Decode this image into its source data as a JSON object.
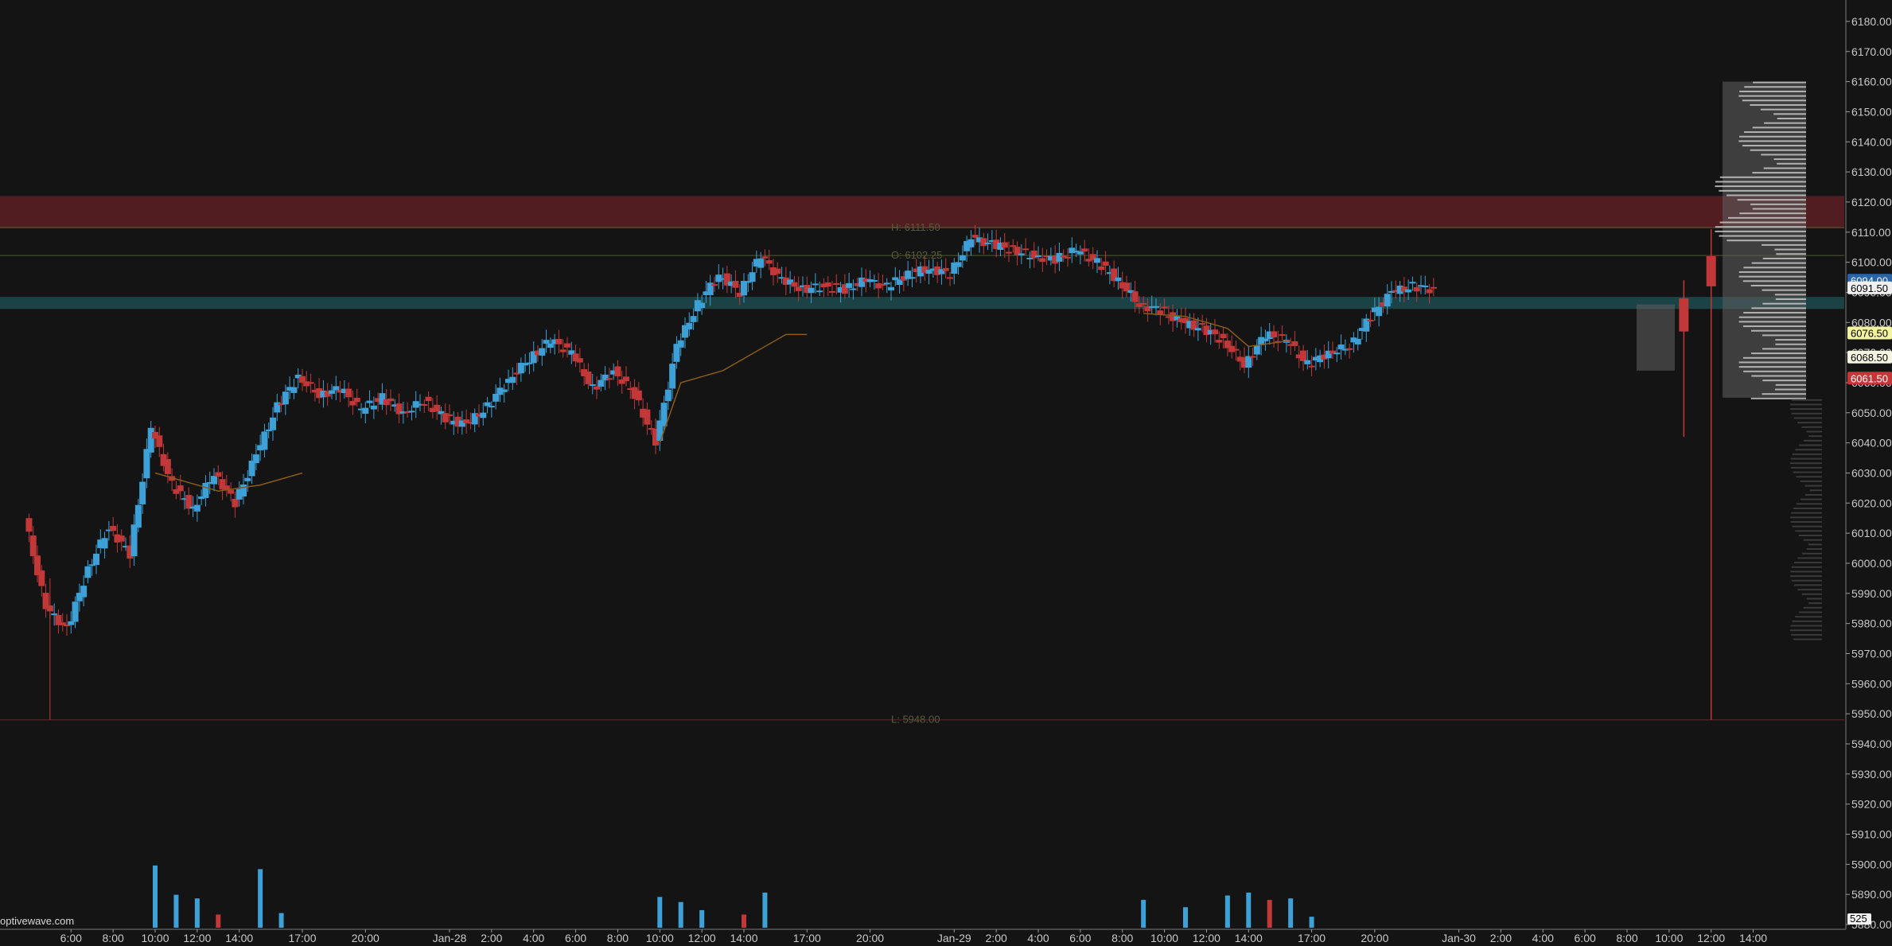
{
  "watermark": "optivewave.com",
  "chart_data": {
    "type": "candlestick",
    "y_axis": {
      "min": 5880,
      "max": 6185,
      "step": 10,
      "position": "right",
      "ticks": [
        6180,
        6170,
        6160,
        6150,
        6140,
        6130,
        6120,
        6110,
        6100,
        6090,
        6080,
        6070,
        6060,
        6050,
        6040,
        6030,
        6020,
        6010,
        6000,
        5990,
        5980,
        5970,
        5960,
        5950,
        5940,
        5930,
        5920,
        5910,
        5900,
        5890,
        5880
      ]
    },
    "x_axis": {
      "labels": [
        {
          "t": 3,
          "label": "6:00"
        },
        {
          "t": 5,
          "label": "8:00"
        },
        {
          "t": 7,
          "label": "10:00"
        },
        {
          "t": 9,
          "label": "12:00"
        },
        {
          "t": 11,
          "label": "14:00"
        },
        {
          "t": 14,
          "label": "17:00"
        },
        {
          "t": 17,
          "label": "20:00"
        },
        {
          "t": 21,
          "label": "Jan-28"
        },
        {
          "t": 23,
          "label": "2:00"
        },
        {
          "t": 25,
          "label": "4:00"
        },
        {
          "t": 27,
          "label": "6:00"
        },
        {
          "t": 29,
          "label": "8:00"
        },
        {
          "t": 31,
          "label": "10:00"
        },
        {
          "t": 33,
          "label": "12:00"
        },
        {
          "t": 35,
          "label": "14:00"
        },
        {
          "t": 38,
          "label": "17:00"
        },
        {
          "t": 41,
          "label": "20:00"
        },
        {
          "t": 45,
          "label": "Jan-29"
        },
        {
          "t": 47,
          "label": "2:00"
        },
        {
          "t": 49,
          "label": "4:00"
        },
        {
          "t": 51,
          "label": "6:00"
        },
        {
          "t": 53,
          "label": "8:00"
        },
        {
          "t": 55,
          "label": "10:00"
        },
        {
          "t": 57,
          "label": "12:00"
        },
        {
          "t": 59,
          "label": "14:00"
        },
        {
          "t": 62,
          "label": "17:00"
        },
        {
          "t": 65,
          "label": "20:00"
        },
        {
          "t": 69,
          "label": "Jan-30"
        },
        {
          "t": 71,
          "label": "2:00"
        },
        {
          "t": 73,
          "label": "4:00"
        },
        {
          "t": 75,
          "label": "6:00"
        },
        {
          "t": 77,
          "label": "8:00"
        },
        {
          "t": 79,
          "label": "10:00"
        },
        {
          "t": 81,
          "label": "12:00"
        },
        {
          "t": 83,
          "label": "14:00"
        }
      ]
    },
    "price_path": [
      [
        1,
        6015
      ],
      [
        2,
        5985
      ],
      [
        3,
        5978
      ],
      [
        4,
        5998
      ],
      [
        5,
        6012
      ],
      [
        6,
        6003
      ],
      [
        7,
        6045
      ],
      [
        8,
        6026
      ],
      [
        9,
        6018
      ],
      [
        10,
        6030
      ],
      [
        11,
        6020
      ],
      [
        12,
        6036
      ],
      [
        13,
        6052
      ],
      [
        14,
        6062
      ],
      [
        15,
        6056
      ],
      [
        16,
        6058
      ],
      [
        17,
        6051
      ],
      [
        18,
        6055
      ],
      [
        19,
        6050
      ],
      [
        20,
        6054
      ],
      [
        21,
        6048
      ],
      [
        22,
        6046
      ],
      [
        23,
        6052
      ],
      [
        24,
        6061
      ],
      [
        25,
        6068
      ],
      [
        26,
        6074
      ],
      [
        27,
        6070
      ],
      [
        28,
        6058
      ],
      [
        29,
        6064
      ],
      [
        30,
        6056
      ],
      [
        31,
        6040
      ],
      [
        32,
        6072
      ],
      [
        33,
        6086
      ],
      [
        34,
        6096
      ],
      [
        35,
        6090
      ],
      [
        36,
        6102
      ],
      [
        37,
        6094
      ],
      [
        38,
        6091
      ],
      [
        39,
        6092
      ],
      [
        40,
        6091
      ],
      [
        41,
        6094
      ],
      [
        42,
        6092
      ],
      [
        43,
        6096
      ],
      [
        44,
        6098
      ],
      [
        45,
        6096
      ],
      [
        46,
        6108
      ],
      [
        47,
        6106
      ],
      [
        48,
        6104
      ],
      [
        49,
        6102
      ],
      [
        50,
        6101
      ],
      [
        51,
        6104
      ],
      [
        52,
        6100
      ],
      [
        53,
        6094
      ],
      [
        54,
        6086
      ],
      [
        55,
        6084
      ],
      [
        56,
        6080
      ],
      [
        57,
        6078
      ],
      [
        58,
        6074
      ],
      [
        59,
        6066
      ],
      [
        60,
        6076
      ],
      [
        61,
        6074
      ],
      [
        62,
        6066
      ],
      [
        63,
        6070
      ],
      [
        64,
        6072
      ],
      [
        65,
        6082
      ],
      [
        66,
        6090
      ],
      [
        67,
        6092
      ],
      [
        68,
        6091
      ]
    ],
    "moving_average": {
      "segments": [
        [
          [
            7,
            6030
          ],
          [
            8,
            6028
          ],
          [
            10,
            6024
          ],
          [
            12,
            6026
          ],
          [
            14,
            6030
          ]
        ],
        [
          [
            31,
            6040
          ],
          [
            32,
            6060
          ],
          [
            34,
            6064
          ],
          [
            36,
            6072
          ],
          [
            37,
            6076
          ],
          [
            38,
            6076
          ]
        ],
        [
          [
            54,
            6083
          ],
          [
            56,
            6082
          ],
          [
            58,
            6078
          ],
          [
            59,
            6072
          ],
          [
            61,
            6074
          ]
        ]
      ]
    },
    "volume": {
      "max": 100,
      "bars": [
        {
          "t": 7,
          "v": 85
        },
        {
          "t": 8,
          "v": 45
        },
        {
          "t": 9,
          "v": 40
        },
        {
          "t": 10,
          "v": 18
        },
        {
          "t": 12,
          "v": 80
        },
        {
          "t": 13,
          "v": 20
        },
        {
          "t": 31,
          "v": 42
        },
        {
          "t": 32,
          "v": 35
        },
        {
          "t": 33,
          "v": 24
        },
        {
          "t": 35,
          "v": 18
        },
        {
          "t": 36,
          "v": 48
        },
        {
          "t": 54,
          "v": 38
        },
        {
          "t": 56,
          "v": 28
        },
        {
          "t": 58,
          "v": 44
        },
        {
          "t": 59,
          "v": 48
        },
        {
          "t": 60,
          "v": 38
        },
        {
          "t": 61,
          "v": 40
        },
        {
          "t": 62,
          "v": 15
        }
      ]
    },
    "zones": [
      {
        "from": 6111.5,
        "to": 6122,
        "color": "#5c1e22"
      },
      {
        "from": 6084.5,
        "to": 6088.5,
        "color": "#1c4a4e"
      }
    ],
    "levels": [
      {
        "y": 6111.5,
        "label": "H: 6111.50",
        "color": "#6a5a3a"
      },
      {
        "y": 6102.25,
        "label": "O: 6102.25",
        "color": "#4c5a2c"
      },
      {
        "y": 5948.0,
        "label": "L: 5948.00",
        "color": "#5a2a2a"
      }
    ],
    "price_labels": [
      {
        "y": 6094.0,
        "text": "6094.00",
        "bg": "#2a64a8",
        "fg": "#ffffff"
      },
      {
        "y": 6091.5,
        "text": "6091.50",
        "bg": "#f0f0f0",
        "fg": "#000000"
      },
      {
        "y": 6076.5,
        "text": "6076.50",
        "bg": "#f4f4a0",
        "fg": "#000000"
      },
      {
        "y": 6068.5,
        "text": "6068.50",
        "bg": "#f4f4e0",
        "fg": "#000000"
      },
      {
        "y": 6061.5,
        "text": "6061.50",
        "bg": "#c23838",
        "fg": "#ffffff"
      }
    ],
    "volume_axis_label": "525",
    "colors": {
      "up": "#3da0d6",
      "down": "#c23838",
      "ma": "#8a5a1a",
      "grid": "#2a2a2a",
      "axis_text": "#c8c8c8"
    }
  }
}
